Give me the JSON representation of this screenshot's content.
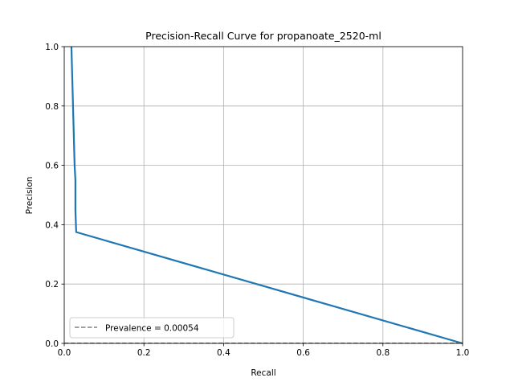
{
  "chart_data": {
    "type": "line",
    "title": "Precision-Recall Curve for propanoate_2520-ml",
    "xlabel": "Recall",
    "ylabel": "Precision",
    "xlim": [
      0.0,
      1.0
    ],
    "ylim": [
      0.0,
      1.0
    ],
    "x_ticks": [
      "0.0",
      "0.2",
      "0.4",
      "0.6",
      "0.8",
      "1.0"
    ],
    "y_ticks": [
      "0.0",
      "0.2",
      "0.4",
      "0.6",
      "0.8",
      "1.0"
    ],
    "grid": true,
    "legend_position": "lower-left",
    "series": [
      {
        "color": "#1f77b4",
        "style": "solid",
        "x": [
          0.018,
          0.026,
          0.028,
          0.028,
          0.03,
          1.0
        ],
        "y": [
          1.0,
          0.6,
          0.55,
          0.45,
          0.375,
          0.0
        ]
      },
      {
        "name": "Prevalence = 0.00054",
        "color": "#808080",
        "style": "dashed",
        "x": [
          0.0,
          1.0
        ],
        "y": [
          0.00054,
          0.00054
        ]
      }
    ]
  }
}
